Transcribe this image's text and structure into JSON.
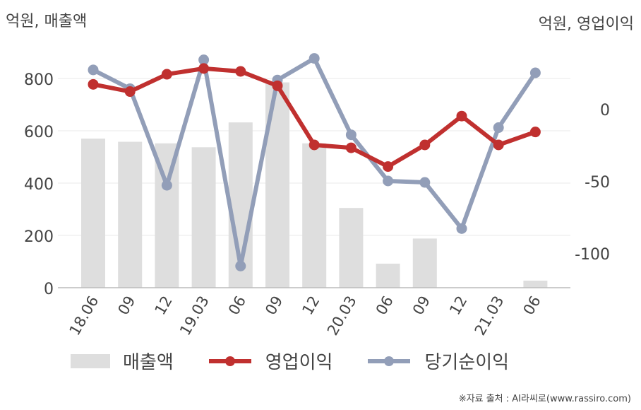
{
  "axis_units": {
    "left": "억원, 매출액",
    "right": "억원, 영업이익"
  },
  "source": "※자료 출처 : AI라씨로(www.rassiro.com)",
  "legend": [
    {
      "label": "매출액",
      "kind": "bar"
    },
    {
      "label": "영업이익",
      "kind": "line"
    },
    {
      "label": "당기순이익",
      "kind": "line"
    }
  ],
  "colors": {
    "sales": "#dedede",
    "operating_profit": "#c0302f",
    "net_income": "#929eb8",
    "grid": "#e8e8e8",
    "axis": "#bbbbbb"
  },
  "chart_data": {
    "type": "bar+line",
    "categories": [
      "18.06",
      "09",
      "12",
      "19.03",
      "06",
      "09",
      "12",
      "20.03",
      "06",
      "09",
      "12",
      "21.03",
      "06"
    ],
    "left_axis": {
      "ticks": [
        0,
        200,
        400,
        600,
        800
      ],
      "range": [
        0,
        900
      ]
    },
    "right_axis": {
      "ticks": [
        -100,
        -50,
        0
      ],
      "range": [
        -125,
        50
      ]
    },
    "series": [
      {
        "name": "매출액",
        "type": "bar",
        "axis": "left",
        "values": [
          570,
          558,
          552,
          537,
          632,
          785,
          552,
          305,
          92,
          188,
          0,
          0,
          27
        ]
      },
      {
        "name": "영업이익",
        "type": "line",
        "axis": "right",
        "values": [
          17,
          12,
          24,
          28,
          26,
          16,
          -25,
          -27,
          -40,
          -25,
          -5,
          -25,
          -16
        ]
      },
      {
        "name": "당기순이익",
        "type": "line",
        "axis": "right",
        "values": [
          27,
          14,
          -53,
          34,
          -109,
          20,
          35,
          -18,
          -50,
          -51,
          -83,
          -13,
          25
        ]
      }
    ]
  }
}
